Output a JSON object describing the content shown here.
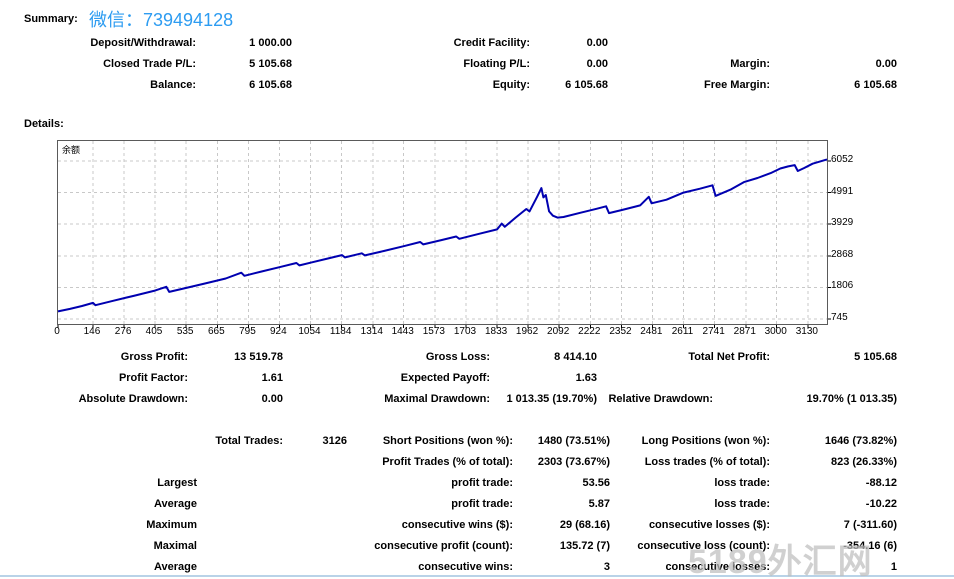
{
  "header": {
    "summary_label": "Summary:",
    "wechat_text": "微信：739494128",
    "wechat_color": "#2D9CF1"
  },
  "details_label": "Details:",
  "summary_rows": [
    [
      {
        "col": "sl1",
        "text": "Deposit/Withdrawal:"
      },
      {
        "col": "sv1",
        "text": "1 000.00"
      },
      {
        "col": "sl2",
        "text": "Credit Facility:"
      },
      {
        "col": "sv2",
        "text": "0.00"
      }
    ],
    [
      {
        "col": "sl1",
        "text": "Closed Trade P/L:"
      },
      {
        "col": "sv1",
        "text": "5 105.68"
      },
      {
        "col": "sl2",
        "text": "Floating P/L:"
      },
      {
        "col": "sv2",
        "text": "0.00"
      },
      {
        "col": "sl3",
        "text": "Margin:"
      },
      {
        "col": "sv3",
        "text": "0.00"
      }
    ],
    [
      {
        "col": "sl1",
        "text": "Balance:"
      },
      {
        "col": "sv1",
        "text": "6 105.68"
      },
      {
        "col": "sl2",
        "text": "Equity:"
      },
      {
        "col": "sv2",
        "text": "6 105.68"
      },
      {
        "col": "sl3",
        "text": "Free Margin:"
      },
      {
        "col": "sv3",
        "text": "6 105.68"
      }
    ]
  ],
  "stats_rows": [
    [
      {
        "col": "gl1",
        "text": "Gross Profit:"
      },
      {
        "col": "gv1",
        "text": "13 519.78"
      },
      {
        "col": "gl2",
        "text": "Gross Loss:"
      },
      {
        "col": "gv2",
        "text": "8 414.10"
      },
      {
        "col": "gl3",
        "text": "Total Net Profit:"
      },
      {
        "col": "gv3",
        "text": "5 105.68"
      }
    ],
    [
      {
        "col": "gl1",
        "text": "Profit Factor:"
      },
      {
        "col": "gv1",
        "text": "1.61"
      },
      {
        "col": "gl2",
        "text": "Expected Payoff:"
      },
      {
        "col": "gv2",
        "text": "1.63"
      }
    ],
    [
      {
        "col": "gl1",
        "text": "Absolute Drawdown:"
      },
      {
        "col": "gv1",
        "text": "0.00"
      },
      {
        "col": "gl2",
        "text": "Maximal Drawdown:"
      },
      {
        "col": "gv2",
        "text": "1 013.35 (19.70%)"
      },
      {
        "col": "gl3b",
        "text": "Relative Drawdown:"
      },
      {
        "col": "gv3",
        "text": "19.70% (1 013.35)"
      }
    ]
  ],
  "trade_rows": [
    [
      {
        "col": "tl1",
        "text": "Total Trades:"
      },
      {
        "col": "tv1",
        "text": "3126"
      },
      {
        "col": "tl2",
        "text": "Short Positions (won %):"
      },
      {
        "col": "tv2",
        "text": "1480 (73.51%)"
      },
      {
        "col": "tl3",
        "text": "Long Positions (won %):"
      },
      {
        "col": "tv3",
        "text": "1646 (73.82%)"
      }
    ],
    [
      {
        "col": "tl2",
        "text": "Profit Trades (% of total):"
      },
      {
        "col": "tv2",
        "text": "2303 (73.67%)"
      },
      {
        "col": "tl3",
        "text": "Loss trades (% of total):"
      },
      {
        "col": "tv3",
        "text": "823 (26.33%)"
      }
    ],
    [
      {
        "col": "tl0",
        "text": "Largest"
      },
      {
        "col": "tl2",
        "text": "profit trade:"
      },
      {
        "col": "tv2",
        "text": "53.56"
      },
      {
        "col": "tl3",
        "text": "loss trade:"
      },
      {
        "col": "tv3",
        "text": "-88.12"
      }
    ],
    [
      {
        "col": "tl0",
        "text": "Average"
      },
      {
        "col": "tl2",
        "text": "profit trade:"
      },
      {
        "col": "tv2",
        "text": "5.87"
      },
      {
        "col": "tl3",
        "text": "loss trade:"
      },
      {
        "col": "tv3",
        "text": "-10.22"
      }
    ],
    [
      {
        "col": "tl0",
        "text": "Maximum"
      },
      {
        "col": "tl2",
        "text": "consecutive wins ($):"
      },
      {
        "col": "tv2",
        "text": "29 (68.16)"
      },
      {
        "col": "tl3",
        "text": "consecutive losses ($):"
      },
      {
        "col": "tv3",
        "text": "7 (-311.60)"
      }
    ],
    [
      {
        "col": "tl0",
        "text": "Maximal"
      },
      {
        "col": "tl2",
        "text": "consecutive profit (count):"
      },
      {
        "col": "tv2",
        "text": "135.72 (7)"
      },
      {
        "col": "tl3",
        "text": "consecutive loss (count):"
      },
      {
        "col": "tv3",
        "text": "-354.16 (6)"
      }
    ],
    [
      {
        "col": "tl0",
        "text": "Average"
      },
      {
        "col": "tl2",
        "text": "consecutive wins:"
      },
      {
        "col": "tv2",
        "text": "3"
      },
      {
        "col": "tl3",
        "text": "consecutive losses:"
      },
      {
        "col": "tv3",
        "text": "1"
      }
    ]
  ],
  "chart_data": {
    "type": "line",
    "title": "余额",
    "series_name": "Balance",
    "line_color": "#0000B0",
    "grid": "dashed",
    "grid_color": "#c8c8c8",
    "legend_position": "top-left",
    "x_ticks": [
      0,
      146,
      276,
      405,
      535,
      665,
      795,
      924,
      1054,
      1184,
      1314,
      1443,
      1573,
      1703,
      1833,
      1962,
      2092,
      2222,
      2352,
      2481,
      2611,
      2741,
      2871,
      3000,
      3130
    ],
    "y_ticks": [
      745,
      1806,
      2868,
      3929,
      4991,
      6052
    ],
    "xlim": [
      0,
      3210
    ],
    "ylim": [
      577,
      6723
    ],
    "points": [
      [
        0,
        1000
      ],
      [
        50,
        1085
      ],
      [
        100,
        1180
      ],
      [
        146,
        1285
      ],
      [
        156,
        1210
      ],
      [
        230,
        1355
      ],
      [
        320,
        1530
      ],
      [
        400,
        1690
      ],
      [
        452,
        1825
      ],
      [
        464,
        1655
      ],
      [
        540,
        1800
      ],
      [
        620,
        1950
      ],
      [
        700,
        2105
      ],
      [
        765,
        2300
      ],
      [
        778,
        2195
      ],
      [
        850,
        2340
      ],
      [
        924,
        2485
      ],
      [
        995,
        2625
      ],
      [
        1008,
        2545
      ],
      [
        1054,
        2635
      ],
      [
        1120,
        2765
      ],
      [
        1185,
        2890
      ],
      [
        1198,
        2815
      ],
      [
        1268,
        2950
      ],
      [
        1281,
        2880
      ],
      [
        1360,
        3030
      ],
      [
        1443,
        3190
      ],
      [
        1512,
        3330
      ],
      [
        1525,
        3250
      ],
      [
        1600,
        3395
      ],
      [
        1662,
        3515
      ],
      [
        1675,
        3440
      ],
      [
        1760,
        3610
      ],
      [
        1833,
        3755
      ],
      [
        1852,
        3950
      ],
      [
        1865,
        3840
      ],
      [
        1910,
        4150
      ],
      [
        1955,
        4440
      ],
      [
        1968,
        4360
      ],
      [
        2000,
        4850
      ],
      [
        2018,
        5140
      ],
      [
        2026,
        4830
      ],
      [
        2036,
        4910
      ],
      [
        2050,
        4360
      ],
      [
        2066,
        4215
      ],
      [
        2085,
        4150
      ],
      [
        2110,
        4170
      ],
      [
        2180,
        4310
      ],
      [
        2250,
        4450
      ],
      [
        2288,
        4530
      ],
      [
        2300,
        4300
      ],
      [
        2360,
        4420
      ],
      [
        2430,
        4560
      ],
      [
        2466,
        4850
      ],
      [
        2478,
        4630
      ],
      [
        2540,
        4750
      ],
      [
        2611,
        4990
      ],
      [
        2680,
        5120
      ],
      [
        2732,
        5235
      ],
      [
        2745,
        4880
      ],
      [
        2810,
        5100
      ],
      [
        2865,
        5350
      ],
      [
        2920,
        5480
      ],
      [
        2975,
        5645
      ],
      [
        3015,
        5800
      ],
      [
        3048,
        5870
      ],
      [
        3075,
        5915
      ],
      [
        3088,
        5715
      ],
      [
        3115,
        5815
      ],
      [
        3150,
        5960
      ],
      [
        3210,
        6105.68
      ]
    ]
  },
  "watermark": {
    "text": "5189外汇网",
    "color": "#bebebe"
  }
}
